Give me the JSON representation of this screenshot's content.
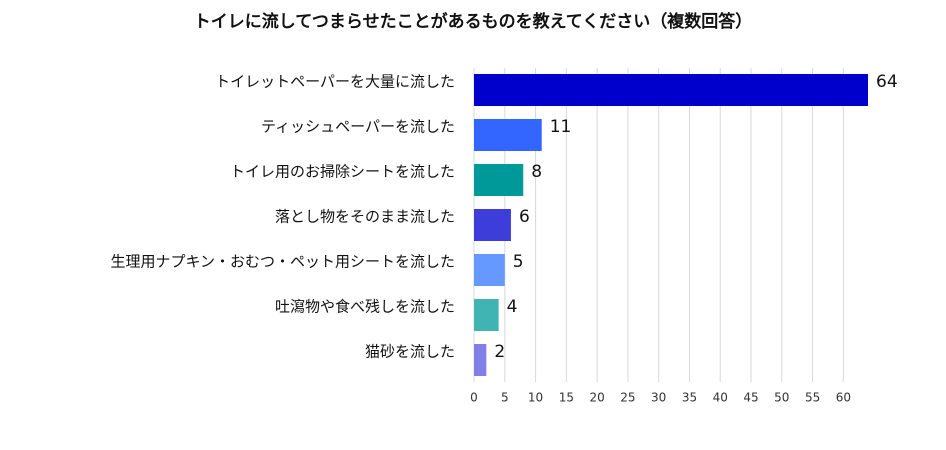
{
  "chart_data": {
    "type": "bar",
    "orientation": "horizontal",
    "title": "トイレに流してつまらせたことがあるものを教えてください（複数回答）",
    "categories": [
      "トイレットペーパーを大量に流した",
      "ティッシュペーパーを流した",
      "トイレ用のお掃除シートを流した",
      "落とし物をそのまま流した",
      "生理用ナプキン・おむつ・ペット用シートを流した",
      "吐瀉物や食べ残しを流した",
      "猫砂を流した"
    ],
    "values": [
      64,
      11,
      8,
      6,
      5,
      4,
      2
    ],
    "colors": [
      "#0000cc",
      "#3366ff",
      "#009999",
      "#3d3dd9",
      "#6699ff",
      "#40b3b3",
      "#8080e6"
    ],
    "xlim": [
      0,
      64
    ],
    "xticks": [
      0,
      5,
      10,
      15,
      20,
      25,
      30,
      35,
      40,
      45,
      50,
      55,
      60
    ],
    "grid": true
  }
}
